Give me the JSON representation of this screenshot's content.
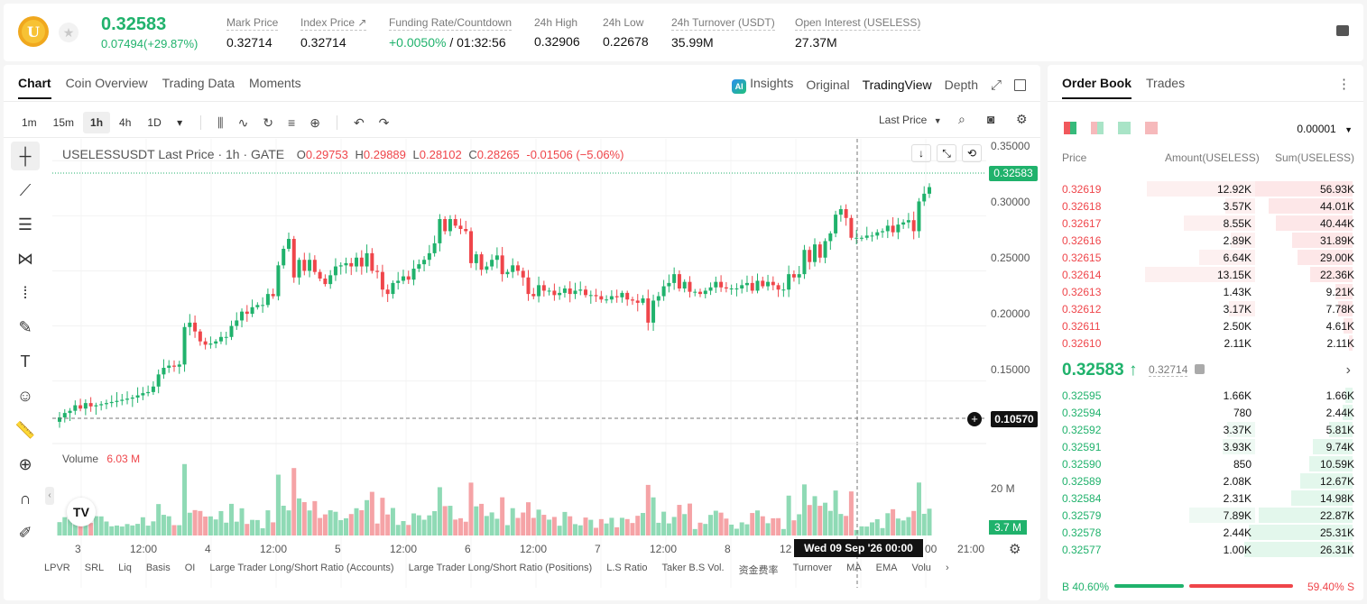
{
  "header": {
    "coin_letter": "U",
    "last_price": "0.32583",
    "change": "0.07494(+29.87%)",
    "stats": [
      {
        "label": "Mark Price",
        "value": "0.32714"
      },
      {
        "label": "Index Price ↗",
        "value": "0.32714"
      },
      {
        "label": "Funding Rate/Countdown",
        "value": "+0.0050%",
        "value2": "/ 01:32:56"
      },
      {
        "label": "24h High",
        "value": "0.32906"
      },
      {
        "label": "24h Low",
        "value": "0.22678"
      },
      {
        "label": "24h Turnover (USDT)",
        "value": "35.99M"
      },
      {
        "label": "Open Interest (USELESS)",
        "value": "27.37M"
      }
    ]
  },
  "chart_panel": {
    "tabs": [
      "Chart",
      "Coin Overview",
      "Trading Data",
      "Moments"
    ],
    "view_tabs": [
      "Insights",
      "Original",
      "TradingView",
      "Depth"
    ],
    "ai_badge": "AI",
    "intervals": [
      "1m",
      "15m",
      "1h",
      "4h",
      "1D"
    ],
    "selected_interval": "1h",
    "price_source": "Last Price",
    "legend": {
      "symbol": "USELESSUSDT Last Price · 1h · GATE",
      "o_label": "O",
      "o": "0.29753",
      "h_label": "H",
      "h": "0.29889",
      "l_label": "L",
      "l": "0.28102",
      "c_label": "C",
      "c": "0.28265",
      "chg": "-0.01506 (−5.06%)"
    },
    "y_ticks": [
      "0.35000",
      "0.30000",
      "0.25000",
      "0.20000",
      "0.15000"
    ],
    "last_price_tag": "0.32583",
    "crosshair_price": "0.10570",
    "volume_label": "Volume",
    "volume_value": "6.03 M",
    "volume_tick": "20 M",
    "volume_tag": "3.7 M",
    "x_ticks": [
      "3",
      "12:00",
      "4",
      "12:00",
      "5",
      "12:00",
      "6",
      "12:00",
      "7",
      "12:00",
      "8",
      "12",
      "00",
      "21:00"
    ],
    "crosshair_date": "Wed 09 Sep '26   00:00",
    "indicators": [
      "LPVR",
      "SRL",
      "Liq",
      "Basis",
      "OI",
      "Large Trader Long/Short Ratio (Accounts)",
      "Large Trader Long/Short Ratio (Positions)",
      "L.S Ratio",
      "Taker B.S Vol.",
      "资金费率",
      "Turnover",
      "MA",
      "EMA",
      "Volu"
    ]
  },
  "chart_data": {
    "type": "candlestick",
    "title": "USELESSUSDT Last Price · 1h · GATE",
    "ylim": [
      0.09,
      0.36
    ],
    "y_ticks": [
      0.15,
      0.2,
      0.25,
      0.3,
      0.35
    ],
    "up_color": "#20b26c",
    "down_color": "#ef454a",
    "closes": [
      0.117,
      0.121,
      0.123,
      0.128,
      0.125,
      0.13,
      0.127,
      0.128,
      0.129,
      0.13,
      0.131,
      0.132,
      0.133,
      0.134,
      0.135,
      0.137,
      0.139,
      0.14,
      0.145,
      0.156,
      0.162,
      0.164,
      0.163,
      0.165,
      0.199,
      0.203,
      0.195,
      0.186,
      0.183,
      0.184,
      0.186,
      0.19,
      0.19,
      0.2,
      0.205,
      0.213,
      0.211,
      0.217,
      0.219,
      0.219,
      0.229,
      0.227,
      0.255,
      0.27,
      0.279,
      0.244,
      0.26,
      0.25,
      0.26,
      0.249,
      0.243,
      0.238,
      0.246,
      0.254,
      0.255,
      0.257,
      0.254,
      0.262,
      0.254,
      0.266,
      0.25,
      0.249,
      0.233,
      0.229,
      0.239,
      0.241,
      0.245,
      0.242,
      0.252,
      0.256,
      0.26,
      0.266,
      0.275,
      0.297,
      0.286,
      0.297,
      0.291,
      0.288,
      0.286,
      0.257,
      0.265,
      0.251,
      0.254,
      0.26,
      0.264,
      0.247,
      0.249,
      0.255,
      0.25,
      0.244,
      0.229,
      0.227,
      0.237,
      0.232,
      0.232,
      0.228,
      0.23,
      0.234,
      0.229,
      0.232,
      0.233,
      0.228,
      0.228,
      0.227,
      0.224,
      0.224,
      0.227,
      0.226,
      0.23,
      0.224,
      0.223,
      0.221,
      0.225,
      0.203,
      0.223,
      0.227,
      0.236,
      0.239,
      0.247,
      0.234,
      0.24,
      0.231,
      0.231,
      0.229,
      0.232,
      0.235,
      0.24,
      0.235,
      0.234,
      0.234,
      0.234,
      0.237,
      0.239,
      0.232,
      0.241,
      0.236,
      0.24,
      0.237,
      0.233,
      0.233,
      0.247,
      0.244,
      0.247,
      0.269,
      0.258,
      0.274,
      0.262,
      0.277,
      0.284,
      0.301,
      0.306,
      0.298,
      0.28,
      0.28,
      0.28,
      0.282,
      0.282,
      0.285,
      0.286,
      0.291,
      0.285,
      0.292,
      0.294,
      0.296,
      0.286,
      0.313,
      0.32,
      0.326
    ]
  },
  "order_book": {
    "tabs": [
      "Order Book",
      "Trades"
    ],
    "precision": "0.00001",
    "col_price": "Price",
    "col_amount": "Amount(USELESS)",
    "col_sum": "Sum(USELESS)",
    "asks": [
      {
        "price": "0.32619",
        "amount": "12.92K",
        "sum": "56.93K"
      },
      {
        "price": "0.32618",
        "amount": "3.57K",
        "sum": "44.01K"
      },
      {
        "price": "0.32617",
        "amount": "8.55K",
        "sum": "40.44K"
      },
      {
        "price": "0.32616",
        "amount": "2.89K",
        "sum": "31.89K"
      },
      {
        "price": "0.32615",
        "amount": "6.64K",
        "sum": "29.00K"
      },
      {
        "price": "0.32614",
        "amount": "13.15K",
        "sum": "22.36K"
      },
      {
        "price": "0.32613",
        "amount": "1.43K",
        "sum": "9.21K"
      },
      {
        "price": "0.32612",
        "amount": "3.17K",
        "sum": "7.78K"
      },
      {
        "price": "0.32611",
        "amount": "2.50K",
        "sum": "4.61K"
      },
      {
        "price": "0.32610",
        "amount": "2.11K",
        "sum": "2.11K"
      }
    ],
    "mid_price": "0.32583 ↑",
    "mark_price": "0.32714",
    "bids": [
      {
        "price": "0.32595",
        "amount": "1.66K",
        "sum": "1.66K"
      },
      {
        "price": "0.32594",
        "amount": "780",
        "sum": "2.44K"
      },
      {
        "price": "0.32592",
        "amount": "3.37K",
        "sum": "5.81K"
      },
      {
        "price": "0.32591",
        "amount": "3.93K",
        "sum": "9.74K"
      },
      {
        "price": "0.32590",
        "amount": "850",
        "sum": "10.59K"
      },
      {
        "price": "0.32589",
        "amount": "2.08K",
        "sum": "12.67K"
      },
      {
        "price": "0.32584",
        "amount": "2.31K",
        "sum": "14.98K"
      },
      {
        "price": "0.32579",
        "amount": "7.89K",
        "sum": "22.87K"
      },
      {
        "price": "0.32578",
        "amount": "2.44K",
        "sum": "25.31K"
      },
      {
        "price": "0.32577",
        "amount": "1.00K",
        "sum": "26.31K"
      }
    ],
    "buy_ratio": "B 40.60%",
    "sell_ratio": "59.40% S",
    "buy_fraction": 0.406
  }
}
